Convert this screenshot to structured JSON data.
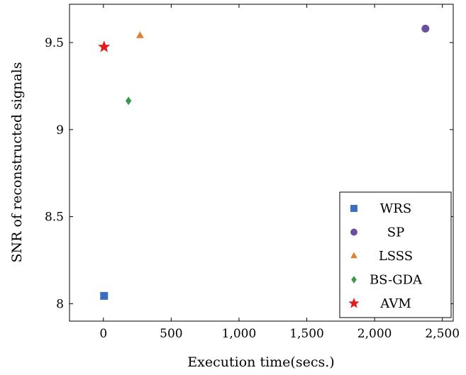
{
  "chart_data": {
    "type": "scatter",
    "xlabel": "Execution time(secs.)",
    "ylabel": "SNR of reconstructed signals",
    "xlim": [
      -250,
      2580
    ],
    "ylim": [
      7.9,
      9.72
    ],
    "xticks": [
      0,
      500,
      1000,
      1500,
      2000,
      2500
    ],
    "xtick_labels": [
      "0",
      "500",
      "1,000",
      "1,500",
      "2,000",
      "2,500"
    ],
    "yticks": [
      8,
      8.5,
      9,
      9.5
    ],
    "ytick_labels": [
      "8",
      "8.5",
      "9",
      "9.5"
    ],
    "grid": false,
    "legend_position": "bottom-right",
    "series": [
      {
        "name": "WRS",
        "marker": "square",
        "color": "#3a6fc0",
        "x": [
          5
        ],
        "y": [
          8.045
        ]
      },
      {
        "name": "SP",
        "marker": "circle",
        "color": "#6a4fa0",
        "x": [
          2375
        ],
        "y": [
          9.58
        ]
      },
      {
        "name": "LSSS",
        "marker": "triangle",
        "color": "#e08030",
        "x": [
          270
        ],
        "y": [
          9.54
        ]
      },
      {
        "name": "BS-GDA",
        "marker": "diamond",
        "color": "#3c9a4e",
        "x": [
          185
        ],
        "y": [
          9.165
        ]
      },
      {
        "name": "AVM",
        "marker": "star",
        "color": "#e41a1c",
        "x": [
          5
        ],
        "y": [
          9.475
        ]
      }
    ]
  }
}
